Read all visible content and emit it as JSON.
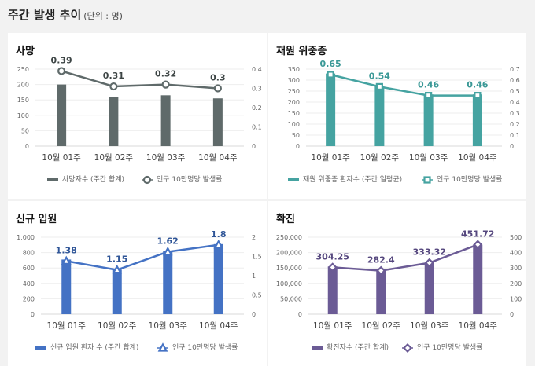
{
  "header": {
    "title": "주간 발생 추이",
    "unit": "(단위 : 명)"
  },
  "chart_data": [
    {
      "type": "bar+line",
      "title": "사망",
      "categories": [
        "10월 01주",
        "10월 02주",
        "10월 03주",
        "10월 04주"
      ],
      "series": [
        {
          "name": "사망자수 (주간 합계)",
          "type": "bar",
          "axis": "left",
          "values": [
            200,
            160,
            165,
            155
          ]
        },
        {
          "name": "인구 10만명당 발생률",
          "type": "line",
          "axis": "right",
          "marker": "circle",
          "values": [
            0.39,
            0.31,
            0.32,
            0.3
          ],
          "labels": [
            "0.39",
            "0.31",
            "0.32",
            "0.3"
          ]
        }
      ],
      "ylim_left": [
        0,
        250
      ],
      "yticks_left": [
        "0",
        "50",
        "100",
        "150",
        "200",
        "250"
      ],
      "ylim_right": [
        0,
        0.4
      ],
      "yticks_right": [
        "0",
        "0.1",
        "0.2",
        "0.3",
        "0.4"
      ],
      "color": "#5f6a6a",
      "label_color": "#3d4545",
      "grid": true,
      "legend": "bottom"
    },
    {
      "type": "bar+line",
      "title": "재원 위중증",
      "categories": [
        "10월 01주",
        "10월 02주",
        "10월 03주",
        "10월 04주"
      ],
      "series": [
        {
          "name": "재원 위중증 환자수 (주간 일평균)",
          "type": "bar",
          "axis": "left",
          "values": [
            330,
            275,
            235,
            235
          ]
        },
        {
          "name": "인구 10만명당 발생률",
          "type": "line",
          "axis": "right",
          "marker": "square",
          "values": [
            0.65,
            0.54,
            0.46,
            0.46
          ],
          "labels": [
            "0.65",
            "0.54",
            "0.46",
            "0.46"
          ]
        }
      ],
      "ylim_left": [
        0,
        350
      ],
      "yticks_left": [
        "0",
        "50",
        "100",
        "150",
        "200",
        "250",
        "300",
        "350"
      ],
      "ylim_right": [
        0,
        0.7
      ],
      "yticks_right": [
        "0",
        "0.1",
        "0.2",
        "0.3",
        "0.4",
        "0.5",
        "0.6",
        "0.7"
      ],
      "color": "#45a3a1",
      "label_color": "#3a9896",
      "grid": true,
      "legend": "bottom"
    },
    {
      "type": "bar+line",
      "title": "신규 입원",
      "categories": [
        "10월 01주",
        "10월 02주",
        "10월 03주",
        "10월 04주"
      ],
      "series": [
        {
          "name": "신규 입원 환자 수 (주간 합계)",
          "type": "bar",
          "axis": "left",
          "values": [
            710,
            580,
            820,
            910
          ]
        },
        {
          "name": "인구 10만명당 발생률",
          "type": "line",
          "axis": "right",
          "marker": "triangle",
          "values": [
            1.38,
            1.15,
            1.62,
            1.8
          ],
          "labels": [
            "1.38",
            "1.15",
            "1.62",
            "1.8"
          ]
        }
      ],
      "ylim_left": [
        0,
        1000
      ],
      "yticks_left": [
        "0",
        "200",
        "400",
        "600",
        "800",
        "1,000"
      ],
      "ylim_right": [
        0,
        2
      ],
      "yticks_right": [
        "0",
        "0.5",
        "1",
        "1.5",
        "2"
      ],
      "color": "#4472c4",
      "label_color": "#2f5597",
      "grid": true,
      "legend": "bottom"
    },
    {
      "type": "bar+line",
      "title": "확진",
      "categories": [
        "10월 01주",
        "10월 02주",
        "10월 03주",
        "10월 04주"
      ],
      "series": [
        {
          "name": "확진자수 (주간 합계)",
          "type": "bar",
          "axis": "left",
          "values": [
            155000,
            145000,
            165000,
            225000
          ]
        },
        {
          "name": "인구 10만명당 발생률",
          "type": "line",
          "axis": "right",
          "marker": "diamond",
          "values": [
            304.25,
            282.4,
            333.32,
            451.72
          ],
          "labels": [
            "304.25",
            "282.4",
            "333.32",
            "451.72"
          ]
        }
      ],
      "ylim_left": [
        0,
        250000
      ],
      "yticks_left": [
        "0",
        "50,000",
        "100,000",
        "150,000",
        "200,000",
        "250,000"
      ],
      "ylim_right": [
        0,
        500
      ],
      "yticks_right": [
        "0",
        "100",
        "200",
        "300",
        "400",
        "500"
      ],
      "color": "#6b5b95",
      "label_color": "#55477e",
      "grid": true,
      "legend": "bottom"
    }
  ]
}
